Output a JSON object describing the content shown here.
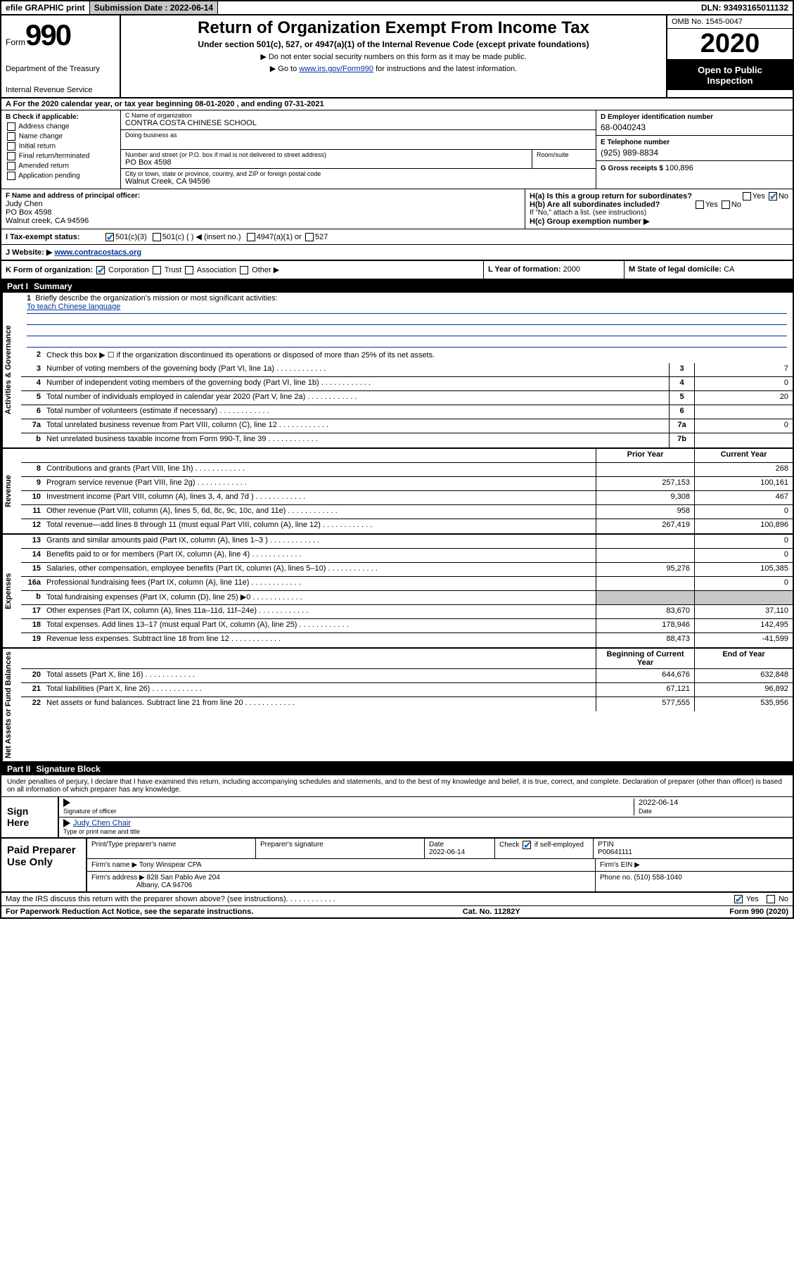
{
  "topbar": {
    "efile": "efile GRAPHIC print",
    "sub_label": "Submission Date :",
    "sub_date": "2022-06-14",
    "dln_label": "DLN:",
    "dln": "93493165011132"
  },
  "header": {
    "form_word": "Form",
    "form_num": "990",
    "dept1": "Department of the Treasury",
    "dept2": "Internal Revenue Service",
    "title": "Return of Organization Exempt From Income Tax",
    "subtitle": "Under section 501(c), 527, or 4947(a)(1) of the Internal Revenue Code (except private foundations)",
    "instr1": "▶ Do not enter social security numbers on this form as it may be made public.",
    "instr2_pre": "▶ Go to ",
    "instr2_link": "www.irs.gov/Form990",
    "instr2_post": " for instructions and the latest information.",
    "omb": "OMB No. 1545-0047",
    "year": "2020",
    "open1": "Open to Public",
    "open2": "Inspection"
  },
  "line_a": "A For the 2020 calendar year, or tax year beginning 08-01-2020    , and ending 07-31-2021",
  "box_b": {
    "hdr": "B Check if applicable:",
    "items": [
      "Address change",
      "Name change",
      "Initial return",
      "Final return/terminated",
      "Amended return",
      "Application pending"
    ]
  },
  "box_c": {
    "name_lbl": "C Name of organization",
    "name": "CONTRA COSTA CHINESE SCHOOL",
    "dba_lbl": "Doing business as",
    "dba": "",
    "street_lbl": "Number and street (or P.O. box if mail is not delivered to street address)",
    "room_lbl": "Room/suite",
    "street": "PO Box 4598",
    "city_lbl": "City or town, state or province, country, and ZIP or foreign postal code",
    "city": "Walnut Creek, CA  94596"
  },
  "box_d": {
    "lbl": "D Employer identification number",
    "val": "68-0040243"
  },
  "box_e": {
    "lbl": "E Telephone number",
    "val": "(925) 989-8834"
  },
  "box_g": {
    "lbl": "G Gross receipts $",
    "val": "100,896"
  },
  "box_f": {
    "lbl": "F Name and address of principal officer:",
    "name": "Judy Chen",
    "line2": "PO Box 4598",
    "line3": "Walnut creek, CA  94596"
  },
  "box_h": {
    "ha": "H(a)  Is this a group return for subordinates?",
    "ha_yes": "Yes",
    "ha_no": "No",
    "hb": "H(b)  Are all subordinates included?",
    "hb_yes": "Yes",
    "hb_no": "No",
    "hb_note": "If \"No,\" attach a list. (see instructions)",
    "hc": "H(c)  Group exemption number ▶"
  },
  "tax_status": {
    "lbl": "I   Tax-exempt status:",
    "o1": "501(c)(3)",
    "o2": "501(c) (   ) ◀ (insert no.)",
    "o3": "4947(a)(1) or",
    "o4": "527"
  },
  "website": {
    "lbl": "J   Website: ▶",
    "val": "www.contracostacs.org"
  },
  "row_k": {
    "lbl": "K Form of organization:",
    "o1": "Corporation",
    "o2": "Trust",
    "o3": "Association",
    "o4": "Other ▶",
    "l_lbl": "L Year of formation:",
    "l_val": "2000",
    "m_lbl": "M State of legal domicile:",
    "m_val": "CA"
  },
  "part1": {
    "num": "Part I",
    "title": "Summary"
  },
  "summary": {
    "q1": "Briefly describe the organization's mission or most significant activities:",
    "mission": "To teach Chinese language",
    "q2": "Check this box ▶ ☐  if the organization discontinued its operations or disposed of more than 25% of its net assets.",
    "lines_ag": [
      {
        "n": "3",
        "d": "Number of voting members of the governing body (Part VI, line 1a)",
        "box": "3",
        "v": "7"
      },
      {
        "n": "4",
        "d": "Number of independent voting members of the governing body (Part VI, line 1b)",
        "box": "4",
        "v": "0"
      },
      {
        "n": "5",
        "d": "Total number of individuals employed in calendar year 2020 (Part V, line 2a)",
        "box": "5",
        "v": "20"
      },
      {
        "n": "6",
        "d": "Total number of volunteers (estimate if necessary)",
        "box": "6",
        "v": ""
      },
      {
        "n": "7a",
        "d": "Total unrelated business revenue from Part VIII, column (C), line 12",
        "box": "7a",
        "v": "0"
      },
      {
        "n": "b",
        "d": "Net unrelated business taxable income from Form 990-T, line 39",
        "box": "7b",
        "v": ""
      }
    ],
    "col_prior": "Prior Year",
    "col_curr": "Current Year",
    "rev": [
      {
        "n": "8",
        "d": "Contributions and grants (Part VIII, line 1h)",
        "p": "",
        "c": "268"
      },
      {
        "n": "9",
        "d": "Program service revenue (Part VIII, line 2g)",
        "p": "257,153",
        "c": "100,161"
      },
      {
        "n": "10",
        "d": "Investment income (Part VIII, column (A), lines 3, 4, and 7d )",
        "p": "9,308",
        "c": "467"
      },
      {
        "n": "11",
        "d": "Other revenue (Part VIII, column (A), lines 5, 6d, 8c, 9c, 10c, and 11e)",
        "p": "958",
        "c": "0"
      },
      {
        "n": "12",
        "d": "Total revenue—add lines 8 through 11 (must equal Part VIII, column (A), line 12)",
        "p": "267,419",
        "c": "100,896"
      }
    ],
    "exp": [
      {
        "n": "13",
        "d": "Grants and similar amounts paid (Part IX, column (A), lines 1–3 )",
        "p": "",
        "c": "0"
      },
      {
        "n": "14",
        "d": "Benefits paid to or for members (Part IX, column (A), line 4)",
        "p": "",
        "c": "0"
      },
      {
        "n": "15",
        "d": "Salaries, other compensation, employee benefits (Part IX, column (A), lines 5–10)",
        "p": "95,276",
        "c": "105,385"
      },
      {
        "n": "16a",
        "d": "Professional fundraising fees (Part IX, column (A), line 11e)",
        "p": "",
        "c": "0"
      },
      {
        "n": "b",
        "d": "Total fundraising expenses (Part IX, column (D), line 25) ▶0",
        "p": "shade",
        "c": "shade"
      },
      {
        "n": "17",
        "d": "Other expenses (Part IX, column (A), lines 11a–11d, 11f–24e)",
        "p": "83,670",
        "c": "37,110"
      },
      {
        "n": "18",
        "d": "Total expenses. Add lines 13–17 (must equal Part IX, column (A), line 25)",
        "p": "178,946",
        "c": "142,495"
      },
      {
        "n": "19",
        "d": "Revenue less expenses. Subtract line 18 from line 12",
        "p": "88,473",
        "c": "-41,599"
      }
    ],
    "col_begin": "Beginning of Current Year",
    "col_end": "End of Year",
    "net": [
      {
        "n": "20",
        "d": "Total assets (Part X, line 16)",
        "p": "644,676",
        "c": "632,848"
      },
      {
        "n": "21",
        "d": "Total liabilities (Part X, line 26)",
        "p": "67,121",
        "c": "96,892"
      },
      {
        "n": "22",
        "d": "Net assets or fund balances. Subtract line 21 from line 20",
        "p": "577,555",
        "c": "535,956"
      }
    ],
    "vlabels": {
      "ag": "Activities & Governance",
      "rev": "Revenue",
      "exp": "Expenses",
      "net": "Net Assets or Fund Balances"
    }
  },
  "part2": {
    "num": "Part II",
    "title": "Signature Block"
  },
  "sig_intro": "Under penalties of perjury, I declare that I have examined this return, including accompanying schedules and statements, and to the best of my knowledge and belief, it is true, correct, and complete. Declaration of preparer (other than officer) is based on all information of which preparer has any knowledge.",
  "sign": {
    "here": "Sign Here",
    "sig_lbl": "Signature of officer",
    "date_val": "2022-06-14",
    "date_lbl": "Date",
    "name": "Judy Chen Chair",
    "name_lbl": "Type or print name and title"
  },
  "paid": {
    "title": "Paid Preparer Use Only",
    "r1": {
      "c1": "Print/Type preparer's name",
      "c2": "Preparer's signature",
      "c3_lbl": "Date",
      "c3": "2022-06-14",
      "c4_lbl": "Check",
      "c4_txt": "if self-employed",
      "c5_lbl": "PTIN",
      "c5": "P00641111"
    },
    "r2": {
      "lbl": "Firm's name      ▶",
      "val": "Tony Winspear CPA",
      "ein_lbl": "Firm's EIN ▶",
      "ein": ""
    },
    "r3": {
      "lbl": "Firm's address ▶",
      "l1": "828 San Pablo Ave 204",
      "l2": "Albany, CA  94706",
      "ph_lbl": "Phone no.",
      "ph": "(510) 558-1040"
    }
  },
  "footer": {
    "discuss": "May the IRS discuss this return with the preparer shown above? (see instructions)",
    "yes": "Yes",
    "no": "No",
    "paperwork": "For Paperwork Reduction Act Notice, see the separate instructions.",
    "cat": "Cat. No. 11282Y",
    "form": "Form 990 (2020)"
  },
  "colors": {
    "link": "#003399",
    "check": "#0066cc",
    "shade": "#c8c8c8"
  }
}
